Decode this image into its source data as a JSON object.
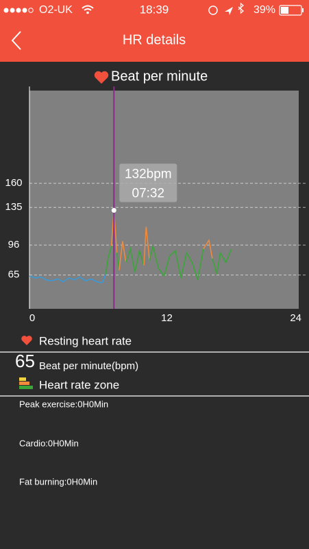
{
  "status_bar": {
    "carrier": "O2-UK",
    "time": "18:39",
    "battery": "39%"
  },
  "nav": {
    "title": "HR details"
  },
  "chart_data": {
    "type": "line",
    "title": "Beat per minute",
    "x": [
      0,
      0.5,
      1,
      1.5,
      2,
      2.5,
      3,
      3.5,
      4,
      4.5,
      5,
      5.5,
      6,
      6.5,
      6.8,
      7,
      7.3,
      7.53,
      7.8,
      8,
      8.3,
      8.6,
      9,
      9.4,
      9.8,
      10.2,
      10.4,
      10.7,
      11,
      11.5,
      12,
      12.5,
      13,
      13.5,
      14,
      14.5,
      15,
      15.5,
      16,
      16.3,
      16.7,
      17,
      17.5,
      18
    ],
    "series": [
      {
        "values": [
          64,
          62,
          63,
          60,
          59,
          61,
          58,
          62,
          60,
          63,
          59,
          61,
          58,
          57,
          66,
          82,
          95,
          132,
          88,
          70,
          100,
          78,
          92,
          68,
          90,
          75,
          115,
          80,
          95,
          72,
          64,
          85,
          90,
          62,
          88,
          78,
          60,
          92,
          101,
          82,
          66,
          88,
          78,
          92
        ],
        "point_colors": [
          "#3a9ad9",
          "#3a9ad9",
          "#3a9ad9",
          "#3a9ad9",
          "#3a9ad9",
          "#3a9ad9",
          "#3a9ad9",
          "#3a9ad9",
          "#3a9ad9",
          "#3a9ad9",
          "#3a9ad9",
          "#3a9ad9",
          "#3a9ad9",
          "#3a9ad9",
          "#3a9ad9",
          "#3aa63a",
          "#3aa63a",
          "#f08a3c",
          "#3aa63a",
          "#3a9ad9",
          "#f08a3c",
          "#3aa63a",
          "#3aa63a",
          "#3a9ad9",
          "#3aa63a",
          "#3aa63a",
          "#f08a3c",
          "#3aa63a",
          "#3aa63a",
          "#3aa63a",
          "#3a9ad9",
          "#3aa63a",
          "#3aa63a",
          "#3a9ad9",
          "#3aa63a",
          "#3aa63a",
          "#3a9ad9",
          "#3aa63a",
          "#f08a3c",
          "#3aa63a",
          "#3a9ad9",
          "#3aa63a",
          "#3aa63a",
          "#3aa63a"
        ]
      }
    ],
    "xlim": [
      0,
      24
    ],
    "xticks": [
      0,
      12,
      24
    ],
    "ylim": [
      30,
      256
    ],
    "yticks": [
      65,
      96,
      135,
      160
    ],
    "grid": true,
    "tooltip": {
      "value": "132bpm",
      "time": "07:32"
    }
  },
  "resting": {
    "label": "Resting heart rate",
    "value": 65,
    "unit": "Beat per minute(bpm)"
  },
  "zone": {
    "title": "Heart rate zone",
    "items": [
      "Peak exercise:0H0Min",
      "Cardio:0H0Min",
      "Fat burning:0H0Min"
    ]
  }
}
